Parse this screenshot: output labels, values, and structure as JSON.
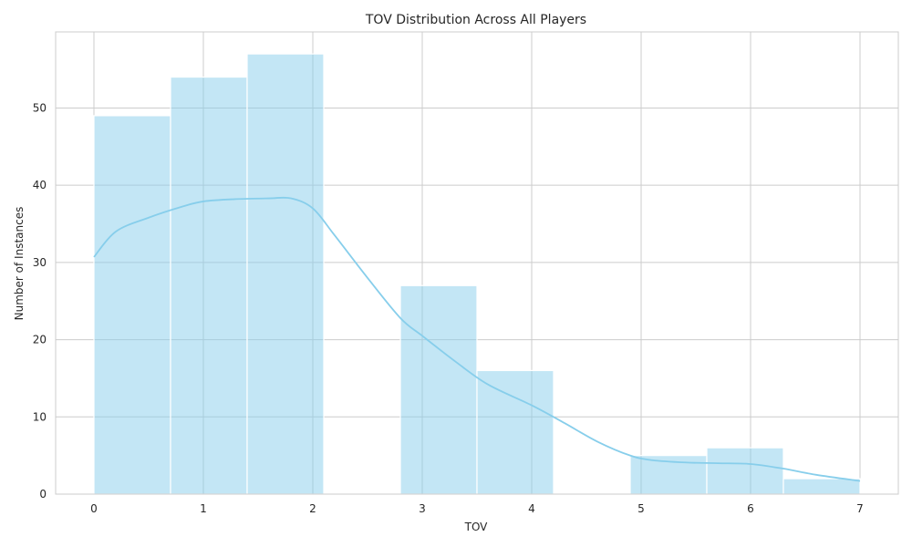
{
  "chart_data": {
    "type": "bar",
    "title": "TOV Distribution Across All Players",
    "xlabel": "TOV",
    "ylabel": "Number of Instances",
    "xlim": [
      -0.35,
      7.35
    ],
    "ylim": [
      0,
      59.85
    ],
    "xticks": [
      0,
      1,
      2,
      3,
      4,
      5,
      6,
      7
    ],
    "yticks": [
      0,
      10,
      20,
      30,
      40,
      50
    ],
    "grid": true,
    "bins": [
      {
        "start": 0.0,
        "end": 0.7,
        "count": 49
      },
      {
        "start": 0.7,
        "end": 1.4,
        "count": 54
      },
      {
        "start": 1.4,
        "end": 2.1,
        "count": 57
      },
      {
        "start": 2.1,
        "end": 2.8,
        "count": 0
      },
      {
        "start": 2.8,
        "end": 3.5,
        "count": 27
      },
      {
        "start": 3.5,
        "end": 4.2,
        "count": 16
      },
      {
        "start": 4.2,
        "end": 4.9,
        "count": 0
      },
      {
        "start": 4.9,
        "end": 5.6,
        "count": 5
      },
      {
        "start": 5.6,
        "end": 6.3,
        "count": 6
      },
      {
        "start": 6.3,
        "end": 7.0,
        "count": 2
      }
    ],
    "kde": {
      "x": [
        0,
        0.2,
        0.5,
        0.8,
        1.0,
        1.3,
        1.6,
        1.8,
        2.0,
        2.2,
        2.5,
        2.8,
        3.0,
        3.3,
        3.6,
        4.0,
        4.3,
        4.6,
        4.9,
        5.1,
        5.4,
        5.7,
        6.0,
        6.3,
        6.6,
        7.0
      ],
      "y": [
        30.7,
        34,
        35.8,
        37.2,
        37.9,
        38.2,
        38.3,
        38.3,
        37,
        33.5,
        28,
        22.8,
        20.5,
        17.2,
        14.2,
        11.5,
        9.2,
        6.8,
        5.0,
        4.4,
        4.1,
        4.0,
        3.9,
        3.3,
        2.5,
        1.7
      ]
    },
    "colors": {
      "bar": "#87ceeb",
      "line": "#87ceeb"
    }
  }
}
